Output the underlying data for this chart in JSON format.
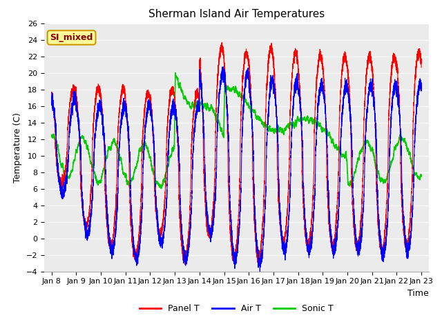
{
  "title": "Sherman Island Air Temperatures",
  "xlabel": "Time",
  "ylabel": "Temperature (C)",
  "ylim": [
    -4,
    26
  ],
  "x_tick_labels": [
    "Jan 8",
    "Jan 9",
    "Jan 10",
    "Jan 11",
    "Jan 12",
    "Jan 13",
    "Jan 14",
    "Jan 15",
    "Jan 16",
    "Jan 17",
    "Jan 18",
    "Jan 19",
    "Jan 20",
    "Jan 21",
    "Jan 22",
    "Jan 23"
  ],
  "legend_items": [
    {
      "label": "Panel T",
      "color": "#ff0000"
    },
    {
      "label": "Air T",
      "color": "#0000ff"
    },
    {
      "label": "Sonic T",
      "color": "#00cc00"
    }
  ],
  "annotation_text": "SI_mixed",
  "annotation_color": "#8b0000",
  "annotation_bg": "#ffff99",
  "panel_color": "#ff0000",
  "air_color": "#0000ff",
  "sonic_color": "#00cc00",
  "plot_bg_color": "#ebebeb",
  "title_fontsize": 11,
  "axis_fontsize": 9,
  "tick_fontsize": 8
}
